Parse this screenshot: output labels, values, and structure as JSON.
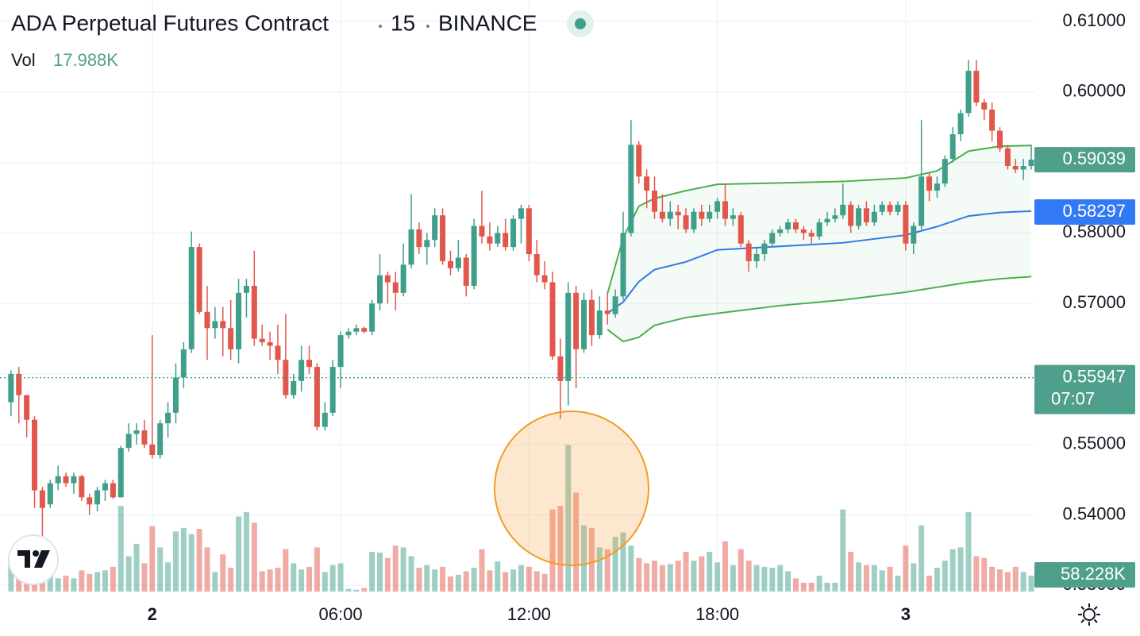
{
  "chart_data": {
    "type": "candlestick",
    "title": "ADA Perpetual Futures Contract",
    "interval": "15",
    "exchange": "BINANCE",
    "volume_legend": {
      "name": "Vol",
      "value": 17988,
      "label": "17.988K"
    },
    "up_color": "#3f9f8a",
    "down_color": "#e2574c",
    "grid": true,
    "xlim": [
      -4.85,
      28.1
    ],
    "xticks": [
      {
        "value": 0,
        "label": "2"
      },
      {
        "value": 6,
        "label": "06:00"
      },
      {
        "value": 12,
        "label": "12:00"
      },
      {
        "value": 18,
        "label": "18:00"
      },
      {
        "value": 24,
        "label": "3"
      }
    ],
    "ylim": [
      0.52914,
      0.61304
    ],
    "yticks": [
      {
        "value": 0.61,
        "label": "0.61000"
      },
      {
        "value": 0.6,
        "label": "0.60000"
      },
      {
        "value": 0.59,
        "label": "0.59000"
      },
      {
        "value": 0.58,
        "label": "0.58000"
      },
      {
        "value": 0.57,
        "label": "0.57000"
      },
      {
        "value": 0.56,
        "label": "0.56000"
      },
      {
        "value": 0.55,
        "label": "0.55000"
      },
      {
        "value": 0.54,
        "label": "0.54000"
      },
      {
        "value": 0.53,
        "label": "0.53000"
      }
    ],
    "y2lim": [
      0,
      670000
    ],
    "x": [
      -4.5,
      -4.25,
      -4,
      -3.75,
      -3.5,
      -3.25,
      -3,
      -2.75,
      -2.5,
      -2.25,
      -2,
      -1.75,
      -1.5,
      -1.25,
      -1,
      -0.75,
      -0.5,
      -0.25,
      0,
      0.25,
      0.5,
      0.75,
      1,
      1.25,
      1.5,
      1.75,
      2,
      2.25,
      2.5,
      2.75,
      3,
      3.25,
      3.5,
      3.75,
      4,
      4.25,
      4.5,
      4.75,
      5,
      5.25,
      5.5,
      5.75,
      6,
      6.25,
      6.5,
      6.75,
      7,
      7.25,
      7.5,
      7.75,
      8,
      8.25,
      8.5,
      8.75,
      9,
      9.25,
      9.5,
      9.75,
      10,
      10.25,
      10.5,
      10.75,
      11,
      11.25,
      11.5,
      11.75,
      12,
      12.25,
      12.5,
      12.75,
      13,
      13.25,
      13.5,
      13.75,
      14,
      14.25,
      14.5,
      14.75,
      15,
      15.25,
      15.5,
      15.75,
      16,
      16.25,
      16.5,
      16.75,
      17,
      17.25,
      17.5,
      17.75,
      18,
      18.25,
      18.5,
      18.75,
      19,
      19.25,
      19.5,
      19.75,
      20,
      20.25,
      20.5,
      20.75,
      21,
      21.25,
      21.5,
      21.75,
      22,
      22.25,
      22.5,
      22.75,
      23,
      23.25,
      23.5,
      23.75,
      24,
      24.25,
      24.5,
      24.75,
      25,
      25.25,
      25.5,
      25.75,
      26,
      26.25,
      26.5,
      26.75,
      27,
      27.25,
      27.5,
      27.75,
      28
    ],
    "open": [
      0.556,
      0.56,
      0.557,
      0.5535,
      0.5435,
      0.5415,
      0.5445,
      0.5455,
      0.5445,
      0.5455,
      0.5425,
      0.5415,
      0.5435,
      0.5445,
      0.5425,
      0.5495,
      0.5515,
      0.552,
      0.55,
      0.5485,
      0.553,
      0.5545,
      0.5595,
      0.5635,
      0.578,
      0.5688,
      0.5665,
      0.5675,
      0.5665,
      0.5635,
      0.5715,
      0.5725,
      0.565,
      0.5645,
      0.564,
      0.562,
      0.557,
      0.559,
      0.562,
      0.561,
      0.5525,
      0.5545,
      0.561,
      0.5655,
      0.566,
      0.5665,
      0.566,
      0.57,
      0.574,
      0.573,
      0.5715,
      0.5755,
      0.5805,
      0.578,
      0.579,
      0.5825,
      0.576,
      0.575,
      0.5765,
      0.5725,
      0.581,
      0.5795,
      0.5785,
      0.58,
      0.578,
      0.582,
      0.5835,
      0.577,
      0.574,
      0.573,
      0.5625,
      0.559,
      0.5715,
      0.5635,
      0.5705,
      0.5655,
      0.569,
      0.5685,
      0.571,
      0.58,
      0.5925,
      0.588,
      0.586,
      0.583,
      0.582,
      0.583,
      0.5825,
      0.5805,
      0.583,
      0.582,
      0.583,
      0.5845,
      0.582,
      0.5825,
      0.5785,
      0.576,
      0.577,
      0.5785,
      0.58,
      0.5805,
      0.5815,
      0.5805,
      0.58,
      0.5795,
      0.5815,
      0.582,
      0.5825,
      0.584,
      0.581,
      0.5835,
      0.5815,
      0.583,
      0.584,
      0.583,
      0.584,
      0.5785,
      0.581,
      0.588,
      0.586,
      0.587,
      0.5905,
      0.594,
      0.597,
      0.603,
      0.5985,
      0.5975,
      0.5945,
      0.592,
      0.5895,
      0.589,
      0.5895
    ],
    "high": [
      0.5605,
      0.561,
      0.557,
      0.554,
      0.544,
      0.545,
      0.547,
      0.546,
      0.546,
      0.5457,
      0.543,
      0.544,
      0.545,
      0.545,
      0.5498,
      0.553,
      0.553,
      0.5535,
      0.5655,
      0.5535,
      0.556,
      0.5615,
      0.5645,
      0.5802,
      0.5785,
      0.5725,
      0.5695,
      0.5695,
      0.5705,
      0.5735,
      0.5735,
      0.5775,
      0.567,
      0.566,
      0.567,
      0.5685,
      0.56,
      0.564,
      0.564,
      0.5615,
      0.556,
      0.562,
      0.566,
      0.5665,
      0.567,
      0.5667,
      0.5705,
      0.577,
      0.5745,
      0.5745,
      0.5785,
      0.5855,
      0.5815,
      0.58,
      0.5835,
      0.5835,
      0.5775,
      0.579,
      0.577,
      0.582,
      0.586,
      0.5815,
      0.581,
      0.582,
      0.5825,
      0.584,
      0.584,
      0.579,
      0.576,
      0.5745,
      0.565,
      0.573,
      0.5725,
      0.5715,
      0.572,
      0.571,
      0.5715,
      0.572,
      0.583,
      0.596,
      0.593,
      0.589,
      0.588,
      0.5855,
      0.5845,
      0.584,
      0.5835,
      0.5835,
      0.584,
      0.584,
      0.585,
      0.587,
      0.5835,
      0.583,
      0.579,
      0.578,
      0.579,
      0.5805,
      0.581,
      0.582,
      0.582,
      0.581,
      0.5805,
      0.582,
      0.583,
      0.5835,
      0.587,
      0.5845,
      0.584,
      0.5845,
      0.584,
      0.5845,
      0.5845,
      0.5845,
      0.5845,
      0.5815,
      0.596,
      0.5885,
      0.588,
      0.591,
      0.595,
      0.5975,
      0.6045,
      0.6045,
      0.599,
      0.5985,
      0.595,
      0.5925,
      0.5905,
      0.5905,
      0.5925
    ],
    "low": [
      0.554,
      0.553,
      0.551,
      0.541,
      0.537,
      0.541,
      0.5435,
      0.544,
      0.543,
      0.542,
      0.54,
      0.5405,
      0.542,
      0.5423,
      0.5425,
      0.549,
      0.55,
      0.5495,
      0.548,
      0.548,
      0.551,
      0.553,
      0.558,
      0.563,
      0.5685,
      0.562,
      0.565,
      0.5625,
      0.562,
      0.5615,
      0.568,
      0.564,
      0.564,
      0.562,
      0.56,
      0.5565,
      0.5565,
      0.5575,
      0.56,
      0.552,
      0.552,
      0.554,
      0.558,
      0.565,
      0.5655,
      0.5658,
      0.5655,
      0.569,
      0.57,
      0.569,
      0.571,
      0.575,
      0.577,
      0.5755,
      0.578,
      0.5755,
      0.574,
      0.5745,
      0.571,
      0.572,
      0.5785,
      0.5775,
      0.578,
      0.5775,
      0.5775,
      0.5785,
      0.576,
      0.573,
      0.572,
      0.562,
      0.5536,
      0.5555,
      0.558,
      0.563,
      0.564,
      0.565,
      0.567,
      0.568,
      0.5705,
      0.5795,
      0.587,
      0.5835,
      0.582,
      0.5815,
      0.581,
      0.5805,
      0.58,
      0.58,
      0.581,
      0.5815,
      0.582,
      0.581,
      0.581,
      0.578,
      0.5745,
      0.575,
      0.576,
      0.578,
      0.5795,
      0.58,
      0.58,
      0.579,
      0.5785,
      0.579,
      0.581,
      0.5815,
      0.582,
      0.58,
      0.5805,
      0.581,
      0.581,
      0.5825,
      0.5825,
      0.5825,
      0.5775,
      0.577,
      0.5805,
      0.5845,
      0.585,
      0.5865,
      0.59,
      0.593,
      0.5965,
      0.598,
      0.596,
      0.593,
      0.5915,
      0.589,
      0.5885,
      0.5875,
      0.589
    ],
    "close": [
      0.56,
      0.557,
      0.5535,
      0.5435,
      0.541,
      0.5445,
      0.5455,
      0.5445,
      0.5455,
      0.5425,
      0.5415,
      0.5435,
      0.5445,
      0.5425,
      0.5495,
      0.5515,
      0.552,
      0.55,
      0.5485,
      0.553,
      0.5545,
      0.5595,
      0.5635,
      0.578,
      0.5688,
      0.5665,
      0.5675,
      0.5665,
      0.5635,
      0.5715,
      0.5725,
      0.565,
      0.5645,
      0.564,
      0.562,
      0.557,
      0.559,
      0.562,
      0.561,
      0.5525,
      0.5545,
      0.561,
      0.5655,
      0.566,
      0.5665,
      0.566,
      0.57,
      0.574,
      0.573,
      0.5715,
      0.5755,
      0.5805,
      0.578,
      0.579,
      0.5825,
      0.576,
      0.575,
      0.5765,
      0.5725,
      0.581,
      0.5795,
      0.5785,
      0.58,
      0.578,
      0.582,
      0.5835,
      0.577,
      0.574,
      0.573,
      0.5625,
      0.559,
      0.5715,
      0.5635,
      0.5705,
      0.5655,
      0.569,
      0.5685,
      0.571,
      0.58,
      0.5925,
      0.588,
      0.586,
      0.583,
      0.582,
      0.583,
      0.5825,
      0.5805,
      0.583,
      0.582,
      0.583,
      0.5845,
      0.582,
      0.5825,
      0.5785,
      0.576,
      0.577,
      0.5785,
      0.58,
      0.5805,
      0.5815,
      0.5805,
      0.58,
      0.5795,
      0.5815,
      0.582,
      0.5825,
      0.584,
      0.581,
      0.5835,
      0.5815,
      0.583,
      0.584,
      0.583,
      0.584,
      0.5785,
      0.581,
      0.588,
      0.586,
      0.587,
      0.5905,
      0.594,
      0.597,
      0.603,
      0.5985,
      0.5975,
      0.5945,
      0.592,
      0.5895,
      0.589,
      0.5895,
      0.5904
    ],
    "volume": [
      40000,
      44000,
      30000,
      22000,
      20000,
      28000,
      15000,
      18000,
      15000,
      24000,
      20000,
      22000,
      24000,
      28000,
      97000,
      40000,
      54000,
      32000,
      74000,
      50000,
      33000,
      68000,
      72000,
      65000,
      71000,
      50000,
      22000,
      42000,
      27000,
      85000,
      90000,
      78000,
      23000,
      25000,
      27000,
      48000,
      32000,
      25000,
      28000,
      50000,
      22000,
      30000,
      32000,
      3000,
      2000,
      4000,
      45000,
      44000,
      38000,
      52000,
      50000,
      40000,
      27000,
      30000,
      25000,
      28000,
      17000,
      19000,
      23000,
      27000,
      48000,
      24000,
      34000,
      22000,
      25000,
      30000,
      28000,
      23000,
      20000,
      93000,
      97000,
      166000,
      112000,
      75000,
      72000,
      50000,
      48000,
      62000,
      67000,
      52000,
      38000,
      32000,
      35000,
      30000,
      31000,
      35000,
      45000,
      35000,
      40000,
      45000,
      33000,
      57000,
      30000,
      48000,
      35000,
      30000,
      28000,
      27000,
      30000,
      23000,
      15000,
      10000,
      10000,
      18000,
      10000,
      10000,
      93000,
      45000,
      33000,
      30000,
      30000,
      24000,
      28000,
      18000,
      52000,
      32000,
      75000,
      18000,
      27000,
      35000,
      48000,
      50000,
      90000,
      40000,
      38000,
      28000,
      25000,
      22000,
      28000,
      22000,
      17988
    ],
    "bands": {
      "x": [
        14.5,
        15,
        15.5,
        16,
        17,
        18,
        20,
        22,
        24,
        25,
        26,
        27,
        28
      ],
      "upper": [
        0.5714,
        0.5793,
        0.5838,
        0.5849,
        0.586,
        0.5869,
        0.5871,
        0.5873,
        0.5878,
        0.5888,
        0.5916,
        0.5923,
        0.5924
      ],
      "basis": [
        0.5686,
        0.5702,
        0.5731,
        0.5748,
        0.5759,
        0.5776,
        0.5781,
        0.5786,
        0.5797,
        0.5809,
        0.5824,
        0.5829,
        0.5831
      ],
      "lower": [
        0.5663,
        0.5646,
        0.5652,
        0.5669,
        0.568,
        0.5686,
        0.5697,
        0.5705,
        0.5716,
        0.5723,
        0.573,
        0.5735,
        0.5738
      ],
      "band_color": "#4caf50",
      "basis_color": "#2f7ae5",
      "fill": "rgba(76,175,80,0.06)"
    },
    "price_markers": [
      {
        "value": 0.59039,
        "color": "#4f9f8d"
      },
      {
        "value": 0.58297,
        "color": "#3179f5"
      },
      {
        "value": 0.55947,
        "color": "#4f9f8d",
        "countdown": "07:07"
      }
    ],
    "volume_marker": {
      "label": "58.228K",
      "color": "#4f9f8d"
    }
  }
}
